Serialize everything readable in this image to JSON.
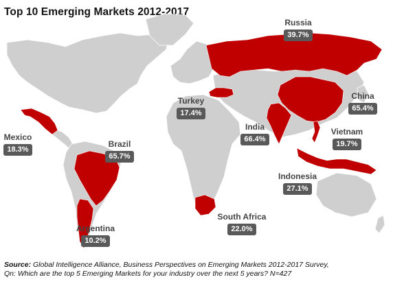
{
  "title": "Top 10 Emerging Markets 2012-2017",
  "colors": {
    "highlight": "#c00000",
    "land": "#cfcfcf",
    "border": "#ffffff",
    "badge": "#595959"
  },
  "markets": [
    {
      "name": "Russia",
      "value": "39.7%"
    },
    {
      "name": "China",
      "value": "65.4%"
    },
    {
      "name": "Turkey",
      "value": "17.4%"
    },
    {
      "name": "India",
      "value": "66.4%"
    },
    {
      "name": "Vietnam",
      "value": "19.7%"
    },
    {
      "name": "Mexico",
      "value": "18.3%"
    },
    {
      "name": "Brazil",
      "value": "65.7%"
    },
    {
      "name": "Indonesia",
      "value": "27.1%"
    },
    {
      "name": "South Africa",
      "value": "22.0%"
    },
    {
      "name": "Argentina",
      "value": "10.2%"
    }
  ],
  "source": {
    "label": "Source:",
    "line1": "Global Intelligence Alliance, Business Perspectives on Emerging Markets 2012-2017 Survey,",
    "line2": "Qn: Which are the top 5 Emerging Markets for your industry over the next 5 years? N=427"
  }
}
